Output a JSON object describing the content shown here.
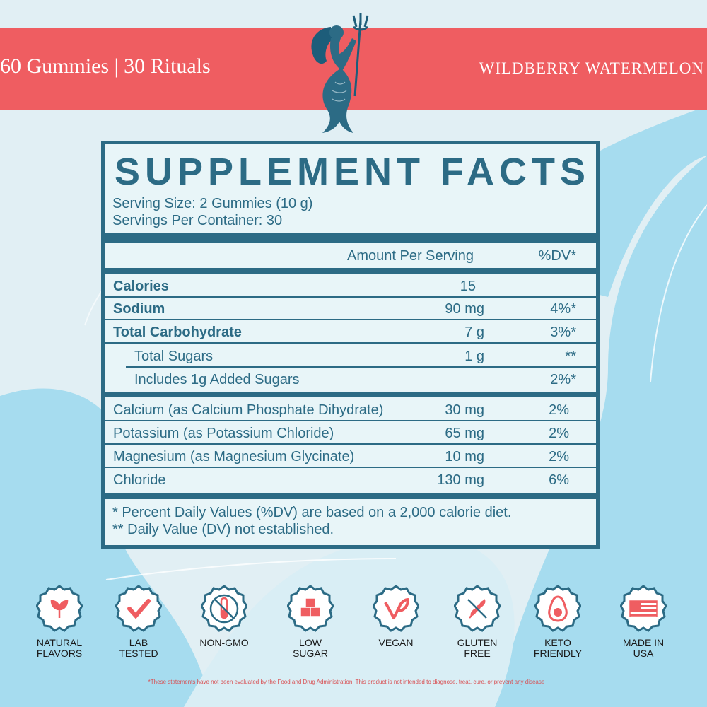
{
  "banner": {
    "count_text": "60 Gummies | 30 Rituals",
    "flavor": "WILDBERRY WATERMELON"
  },
  "logo": {
    "icon": "mermaid-with-trident-icon"
  },
  "facts": {
    "title": "SUPPLEMENT FACTS",
    "serving_size": "Serving Size: 2 Gummies (10 g)",
    "servings_per_container": "Servings Per Container: 30",
    "amount_header": "Amount Per Serving",
    "dv_header": "%DV*",
    "macros": [
      {
        "name": "Calories",
        "amount": "15",
        "dv": ""
      },
      {
        "name": "Sodium",
        "amount": "90 mg",
        "dv": "4%*"
      },
      {
        "name": "Total Carbohydrate",
        "amount": "7 g",
        "dv": "3%*"
      },
      {
        "name": "Total Sugars",
        "amount": "1 g",
        "dv": "**"
      },
      {
        "name": "Includes 1g Added Sugars",
        "amount": "",
        "dv": "2%*"
      }
    ],
    "minerals": [
      {
        "name": "Calcium (as Calcium Phosphate Dihydrate)",
        "amount": "30 mg",
        "dv": "2%"
      },
      {
        "name": "Potassium (as Potassium Chloride)",
        "amount": "65 mg",
        "dv": "2%"
      },
      {
        "name": "Magnesium (as Magnesium Glycinate)",
        "amount": "10 mg",
        "dv": "2%"
      },
      {
        "name": "Chloride",
        "amount": "130 mg",
        "dv": "6%"
      }
    ],
    "footnote_1": "* Percent Daily Values (%DV) are based on a 2,000 calorie diet.",
    "footnote_2": "** Daily Value (DV) not established."
  },
  "badges": [
    {
      "label": "NATURAL\nFLAVORS",
      "icon": "leaves-icon"
    },
    {
      "label": "LAB\nTESTED",
      "icon": "checkmark-box-icon"
    },
    {
      "label": "NON-GMO",
      "icon": "test-tube-crossed-icon"
    },
    {
      "label": "LOW\nSUGAR",
      "icon": "sugar-cubes-icon"
    },
    {
      "label": "VEGAN",
      "icon": "vegan-leaf-icon"
    },
    {
      "label": "GLUTEN\nFREE",
      "icon": "wheat-crossed-icon"
    },
    {
      "label": "KETO\nFRIENDLY",
      "icon": "avocado-icon"
    },
    {
      "label": "MADE IN\nUSA",
      "icon": "us-flag-icon"
    }
  ],
  "disclaimer": "*These statements have not been evaluated by the Food and Drug Administration. This product is not intended to diagnose, treat, cure, or prevent any disease",
  "colors": {
    "coral": "#ef5d61",
    "teal": "#2c6b85",
    "light_blue": "#a6dcef",
    "background": "#e1eff4"
  }
}
